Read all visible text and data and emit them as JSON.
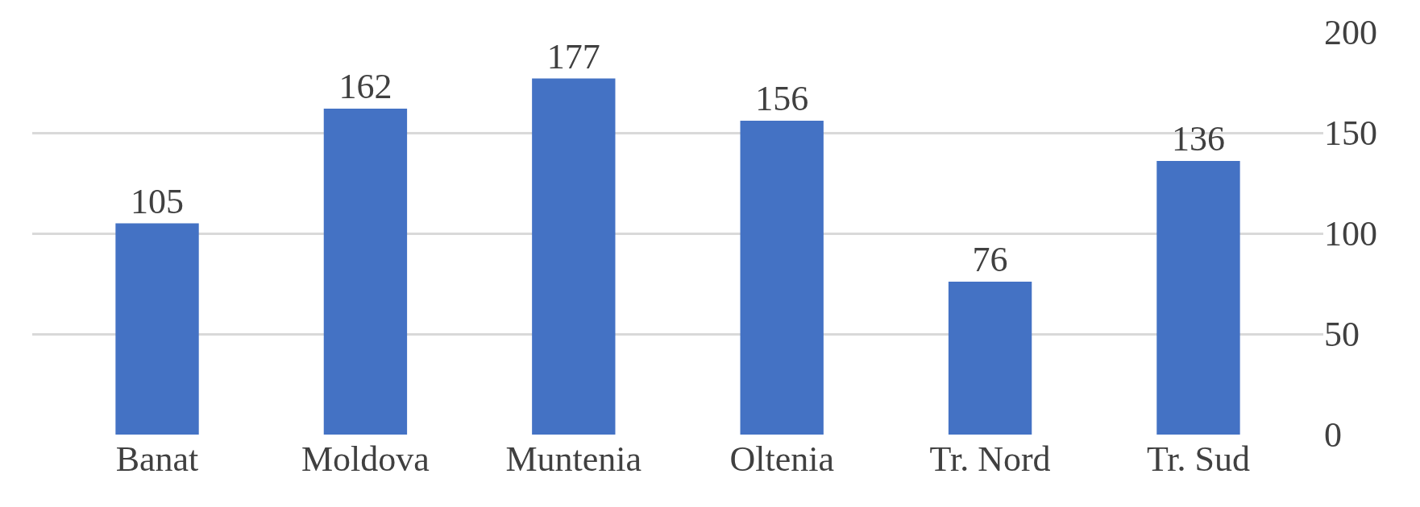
{
  "chart_data": {
    "type": "bar",
    "categories": [
      "Banat",
      "Moldova",
      "Muntenia",
      "Oltenia",
      "Tr. Nord",
      "Tr. Sud"
    ],
    "values": [
      105,
      162,
      177,
      156,
      76,
      136
    ],
    "color": "#4472c4",
    "data_labels": true,
    "grid": "y",
    "ylim": [
      0,
      200
    ],
    "yticks": [
      0,
      50,
      100,
      150,
      200
    ]
  }
}
